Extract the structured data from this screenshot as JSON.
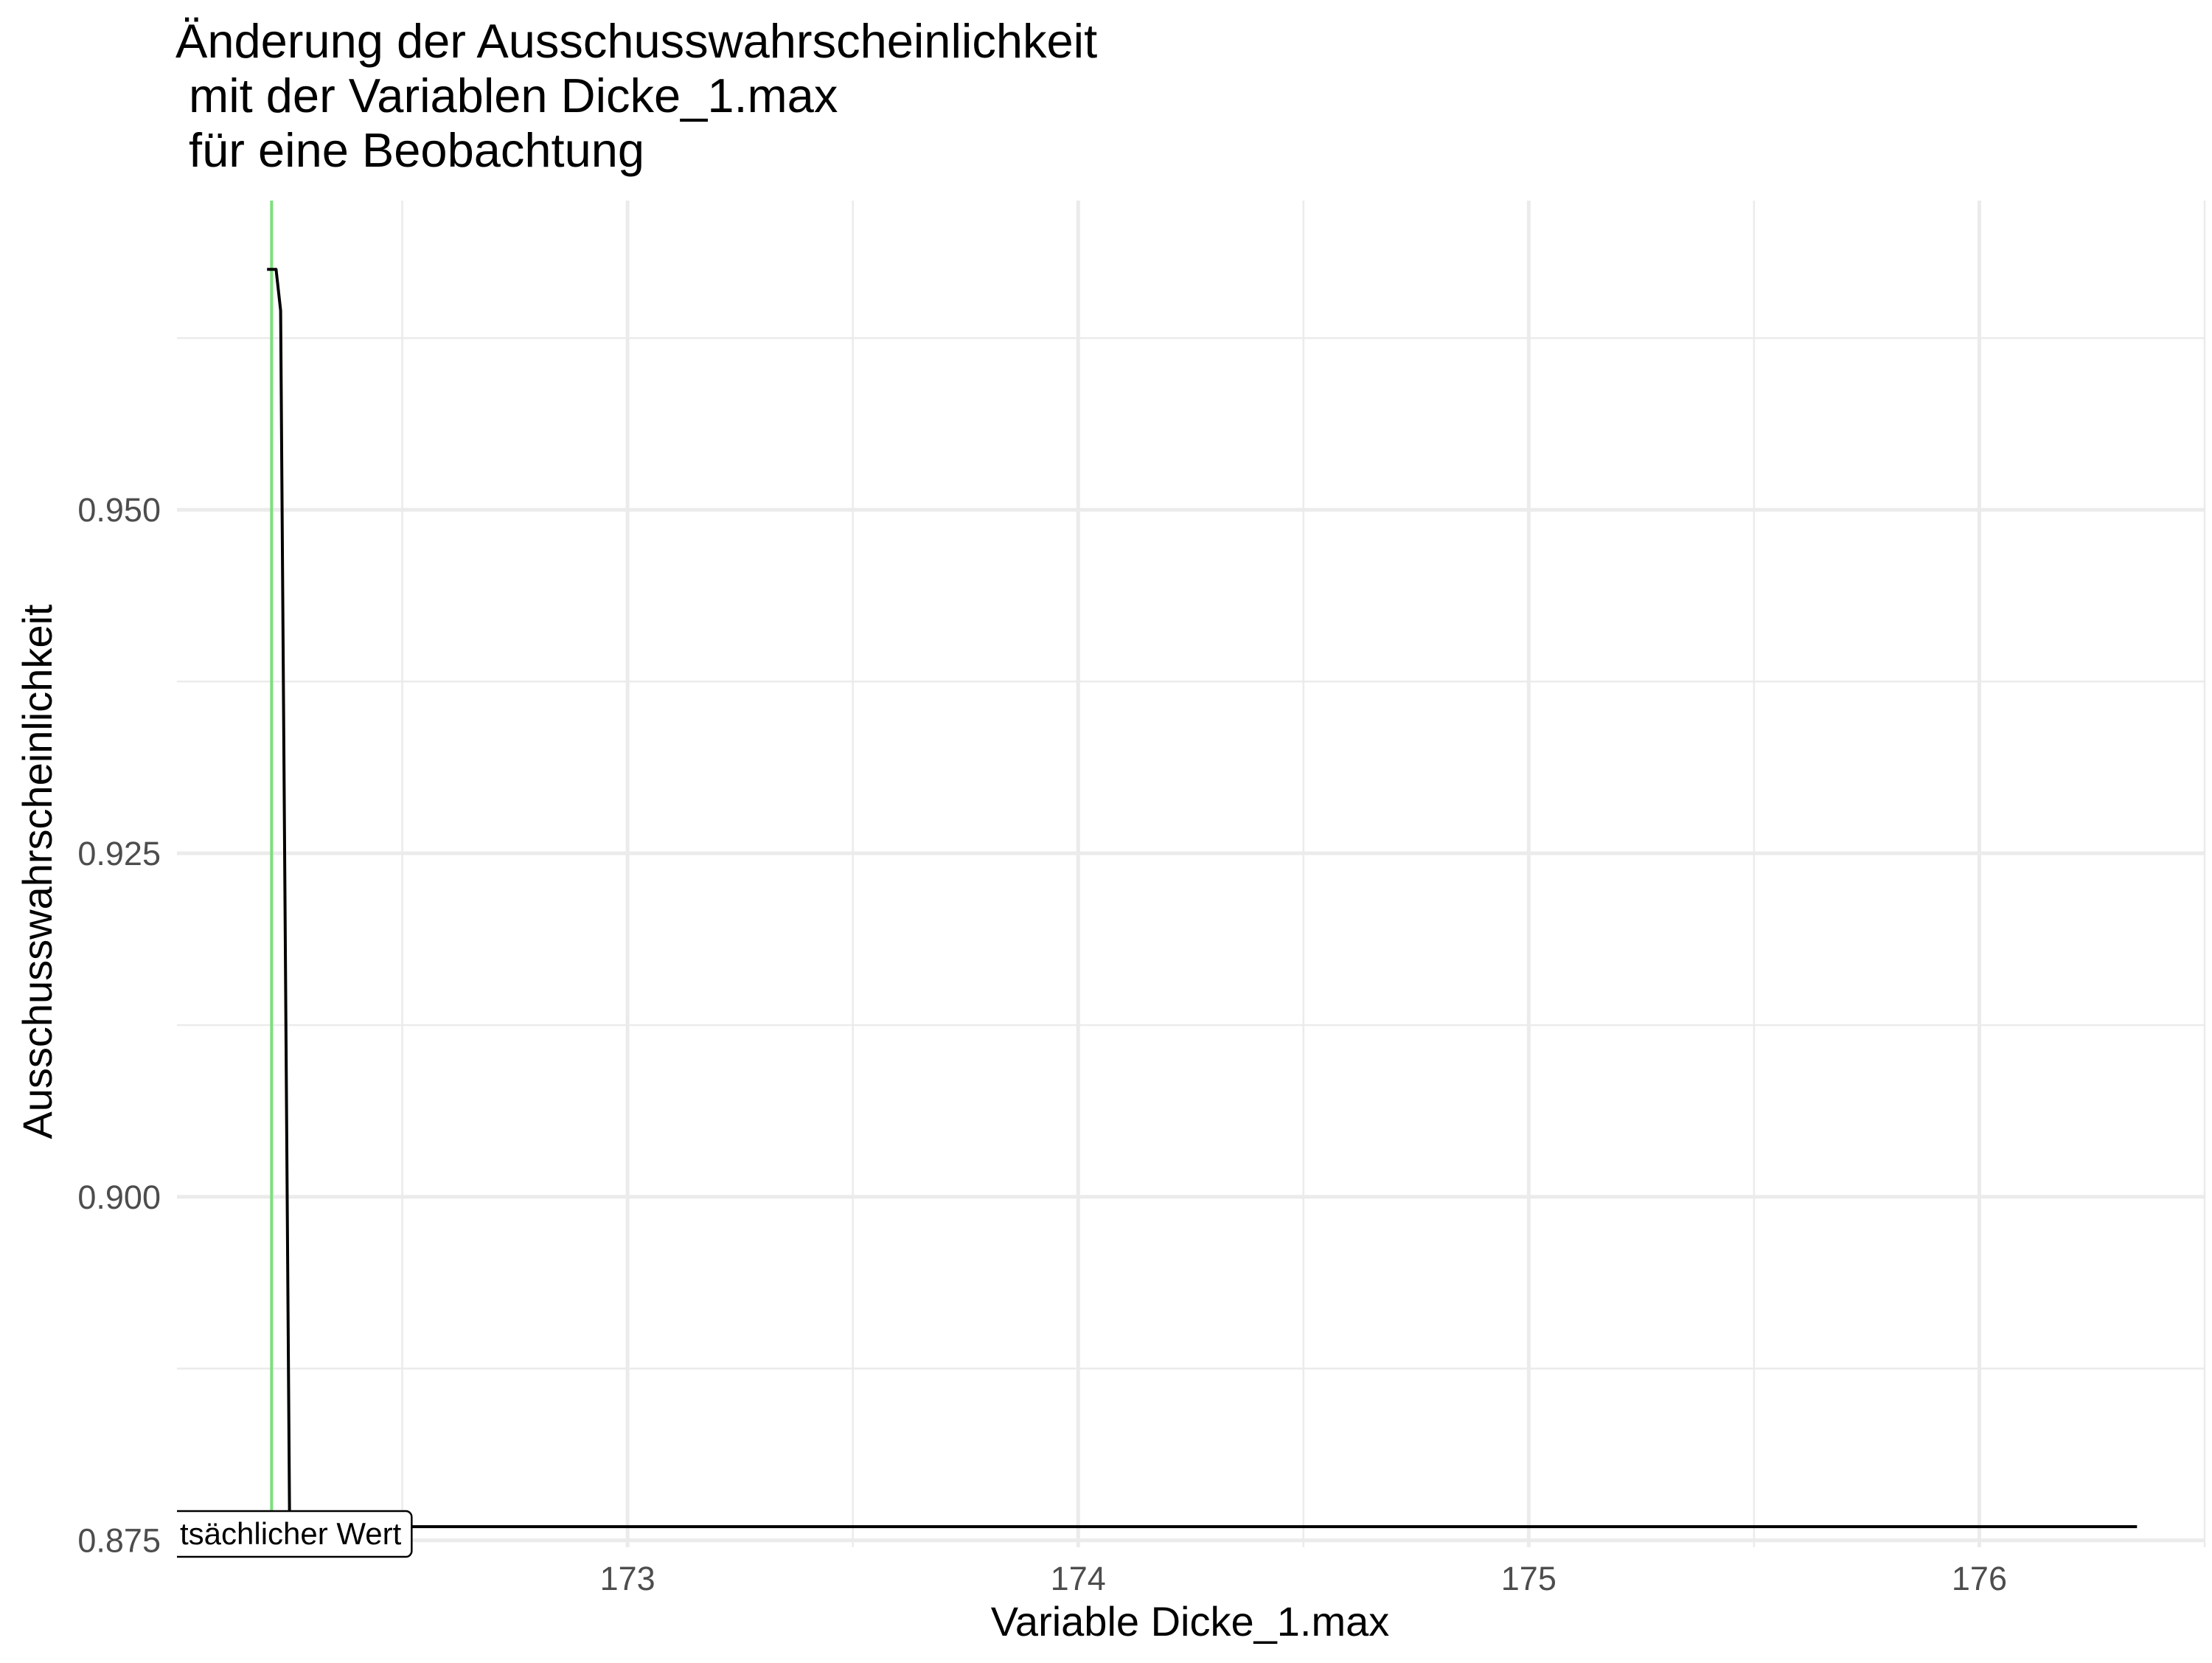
{
  "chart_data": {
    "type": "line",
    "title_lines": [
      "Änderung der Ausschusswahrscheinlichkeit",
      " mit der Variablen Dicke_1.max",
      " für eine Beobachtung"
    ],
    "xlabel": "Variable Dicke_1.max",
    "ylabel": "Ausschusswahrscheinlichkeit",
    "xlim": [
      172.0,
      176.5
    ],
    "ylim": [
      0.8745,
      0.9725
    ],
    "x_ticks": [
      173,
      174,
      175,
      176
    ],
    "x_tick_labels": [
      "173",
      "174",
      "175",
      "176"
    ],
    "y_ticks": [
      0.875,
      0.9,
      0.925,
      0.95
    ],
    "y_tick_labels": [
      "0.875",
      "0.900",
      "0.925",
      "0.950"
    ],
    "grid": true,
    "series": [
      {
        "color": "#000000",
        "x": [
          172.2,
          172.21,
          172.22,
          172.23,
          172.25,
          176.35
        ],
        "y": [
          0.9675,
          0.9675,
          0.9675,
          0.9645,
          0.876,
          0.876
        ]
      }
    ],
    "reference_line": {
      "x": 172.21,
      "color": "#7be07b"
    },
    "annotation": {
      "text": "tsächlicher Wert",
      "x": 172.21,
      "y": 0.876
    }
  }
}
